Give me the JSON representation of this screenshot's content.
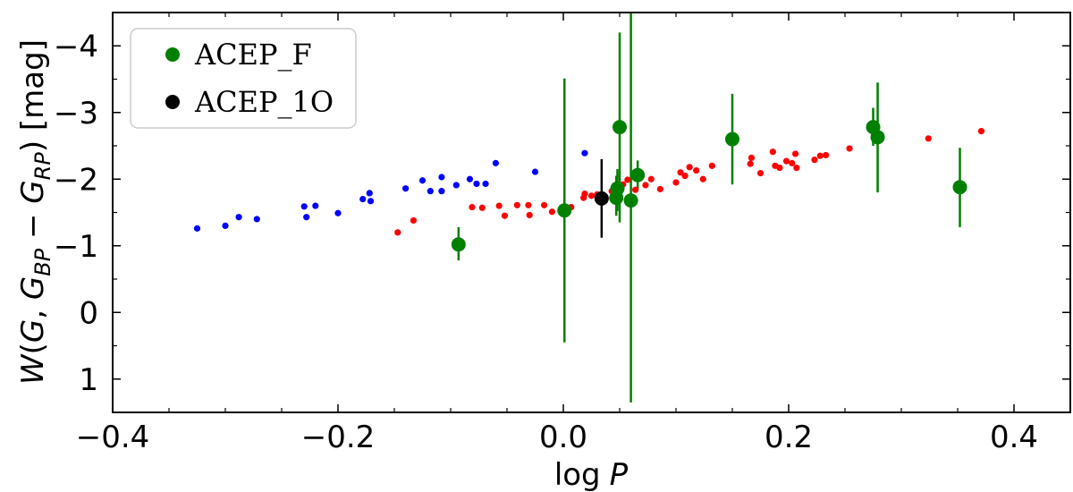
{
  "chart_data": {
    "type": "scatter",
    "title": "",
    "xlabel_main": "log",
    "xlabel_italic": "P",
    "ylabel": "W(G, G_BP − G_RP) [mag]",
    "xlim": [
      -0.4,
      0.45
    ],
    "ylim": [
      1.5,
      -4.5
    ],
    "y_inverted": true,
    "xticks": [
      -0.4,
      -0.2,
      0.0,
      0.2,
      0.4
    ],
    "xtick_labels": [
      "−0.4",
      "−0.2",
      "0.0",
      "0.2",
      "0.4"
    ],
    "yticks": [
      -4,
      -3,
      -2,
      -1,
      0,
      1
    ],
    "ytick_labels": [
      "−4",
      "−3",
      "−2",
      "−1",
      "0",
      "1"
    ],
    "legend_position": "upper-left",
    "legend": [
      {
        "label": "ACEP_F",
        "color": "#008000"
      },
      {
        "label": "ACEP_1O",
        "color": "#000000"
      }
    ],
    "series": [
      {
        "name": "ACEP_F",
        "color": "#008000",
        "marker": "large-circle",
        "points": [
          {
            "x": -0.093,
            "y": -1.02,
            "err_low": -0.78,
            "err_high": -1.28
          },
          {
            "x": 0.001,
            "y": -1.53,
            "err_low": 0.45,
            "err_high": -3.51
          },
          {
            "x": 0.047,
            "y": -1.72,
            "err_low": -1.45,
            "err_high": -2.05
          },
          {
            "x": 0.048,
            "y": -1.86,
            "err_low": -1.52,
            "err_high": -2.15
          },
          {
            "x": 0.05,
            "y": -2.78,
            "err_low": -1.35,
            "err_high": -4.2
          },
          {
            "x": 0.06,
            "y": -1.68,
            "err_low": 1.35,
            "err_high": -4.5
          },
          {
            "x": 0.066,
            "y": -2.06,
            "err_low": -1.85,
            "err_high": -2.28
          },
          {
            "x": 0.15,
            "y": -2.6,
            "err_low": -1.92,
            "err_high": -3.28
          },
          {
            "x": 0.275,
            "y": -2.78,
            "err_low": -2.5,
            "err_high": -3.07
          },
          {
            "x": 0.279,
            "y": -2.63,
            "err_low": -1.8,
            "err_high": -3.45
          },
          {
            "x": 0.352,
            "y": -1.88,
            "err_low": -1.28,
            "err_high": -2.47
          }
        ]
      },
      {
        "name": "ACEP_1O",
        "color": "#000000",
        "marker": "large-circle",
        "points": [
          {
            "x": 0.034,
            "y": -1.71,
            "err_low": -1.12,
            "err_high": -2.3
          }
        ]
      },
      {
        "name": "blue-stars",
        "color": "#0000ff",
        "marker": "small-dot",
        "points": [
          {
            "x": -0.325,
            "y": -1.26
          },
          {
            "x": -0.3,
            "y": -1.3
          },
          {
            "x": -0.288,
            "y": -1.43
          },
          {
            "x": -0.272,
            "y": -1.4
          },
          {
            "x": -0.23,
            "y": -1.59
          },
          {
            "x": -0.228,
            "y": -1.43
          },
          {
            "x": -0.22,
            "y": -1.6
          },
          {
            "x": -0.2,
            "y": -1.49
          },
          {
            "x": -0.178,
            "y": -1.7
          },
          {
            "x": -0.172,
            "y": -1.79
          },
          {
            "x": -0.171,
            "y": -1.67
          },
          {
            "x": -0.14,
            "y": -1.86
          },
          {
            "x": -0.125,
            "y": -1.98
          },
          {
            "x": -0.118,
            "y": -1.82
          },
          {
            "x": -0.108,
            "y": -2.03
          },
          {
            "x": -0.108,
            "y": -1.82
          },
          {
            "x": -0.095,
            "y": -1.91
          },
          {
            "x": -0.083,
            "y": -2.0
          },
          {
            "x": -0.077,
            "y": -1.93
          },
          {
            "x": -0.069,
            "y": -1.93
          },
          {
            "x": -0.06,
            "y": -2.24
          },
          {
            "x": -0.025,
            "y": -2.11
          },
          {
            "x": 0.019,
            "y": -2.39
          }
        ]
      },
      {
        "name": "red-stars",
        "color": "#ff0000",
        "marker": "small-dot",
        "points": [
          {
            "x": -0.147,
            "y": -1.2
          },
          {
            "x": -0.133,
            "y": -1.38
          },
          {
            "x": -0.081,
            "y": -1.58
          },
          {
            "x": -0.072,
            "y": -1.57
          },
          {
            "x": -0.057,
            "y": -1.6
          },
          {
            "x": -0.052,
            "y": -1.45
          },
          {
            "x": -0.041,
            "y": -1.61
          },
          {
            "x": -0.031,
            "y": -1.61
          },
          {
            "x": -0.03,
            "y": -1.46
          },
          {
            "x": -0.017,
            "y": -1.61
          },
          {
            "x": -0.01,
            "y": -1.51
          },
          {
            "x": 0.007,
            "y": -1.58
          },
          {
            "x": 0.018,
            "y": -1.72
          },
          {
            "x": 0.019,
            "y": -1.78
          },
          {
            "x": 0.025,
            "y": -1.75
          },
          {
            "x": 0.03,
            "y": -1.77
          },
          {
            "x": 0.043,
            "y": -1.82
          },
          {
            "x": 0.053,
            "y": -1.92
          },
          {
            "x": 0.057,
            "y": -1.99
          },
          {
            "x": 0.064,
            "y": -1.84
          },
          {
            "x": 0.073,
            "y": -1.91
          },
          {
            "x": 0.078,
            "y": -2.0
          },
          {
            "x": 0.086,
            "y": -1.85
          },
          {
            "x": 0.1,
            "y": -1.95
          },
          {
            "x": 0.104,
            "y": -2.1
          },
          {
            "x": 0.108,
            "y": -2.05
          },
          {
            "x": 0.112,
            "y": -2.18
          },
          {
            "x": 0.118,
            "y": -2.13
          },
          {
            "x": 0.124,
            "y": -2.0
          },
          {
            "x": 0.132,
            "y": -2.2
          },
          {
            "x": 0.166,
            "y": -2.23
          },
          {
            "x": 0.167,
            "y": -2.32
          },
          {
            "x": 0.175,
            "y": -2.09
          },
          {
            "x": 0.186,
            "y": -2.41
          },
          {
            "x": 0.188,
            "y": -2.2
          },
          {
            "x": 0.192,
            "y": -2.17
          },
          {
            "x": 0.198,
            "y": -2.27
          },
          {
            "x": 0.203,
            "y": -2.24
          },
          {
            "x": 0.206,
            "y": -2.38
          },
          {
            "x": 0.207,
            "y": -2.17
          },
          {
            "x": 0.223,
            "y": -2.29
          },
          {
            "x": 0.228,
            "y": -2.35
          },
          {
            "x": 0.233,
            "y": -2.36
          },
          {
            "x": 0.254,
            "y": -2.46
          },
          {
            "x": 0.324,
            "y": -2.61
          },
          {
            "x": 0.371,
            "y": -2.72
          }
        ]
      }
    ]
  }
}
